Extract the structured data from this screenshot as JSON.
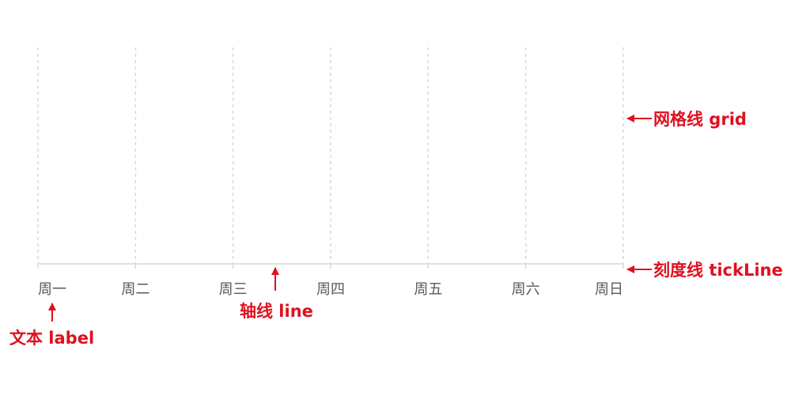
{
  "axis": {
    "labels": [
      "周一",
      "周二",
      "周三",
      "周四",
      "周五",
      "周六",
      "周日"
    ]
  },
  "annotations": {
    "grid": "网格线 grid",
    "tick_line": "刻度线 tickLine",
    "axis_line": "轴线 line",
    "label": "文本 label"
  },
  "colors": {
    "annotation": "#e0101f",
    "grid": "#d9d9d9",
    "axis_line": "#d9d9d9",
    "tick_label": "#595959"
  }
}
